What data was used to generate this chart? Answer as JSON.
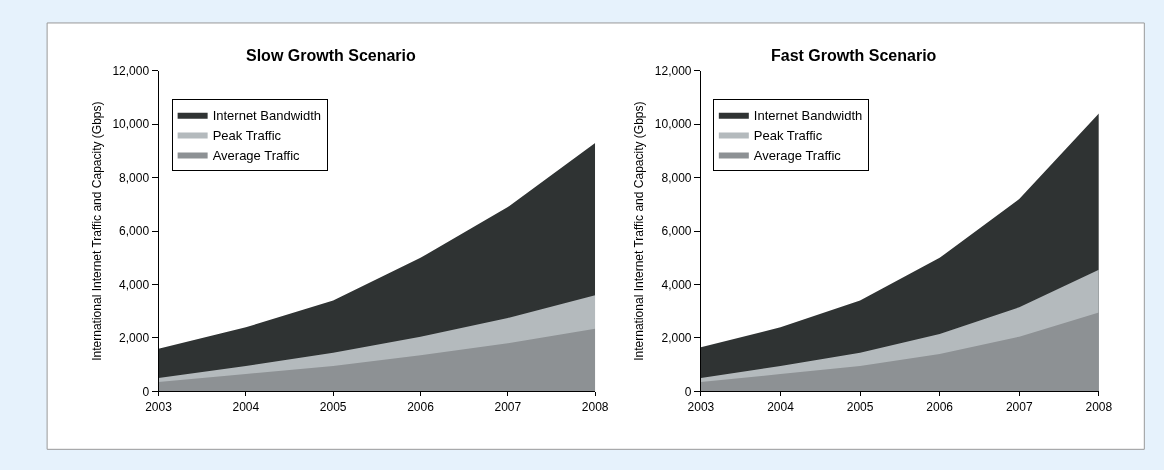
{
  "chart_data": [
    {
      "type": "area",
      "title": "Slow Growth Scenario",
      "ylabel": "International Internet Traffic and Capacity (Gbps)",
      "x": [
        2003,
        2004,
        2005,
        2006,
        2007,
        2008
      ],
      "xlim": [
        2003,
        2008
      ],
      "xticks": [
        2003,
        2004,
        2005,
        2006,
        2007,
        2008
      ],
      "ylim": [
        0,
        12000
      ],
      "yticks": [
        {
          "value": 0,
          "label": "0"
        },
        {
          "value": 2000,
          "label": "2,000"
        },
        {
          "value": 4000,
          "label": "4,000"
        },
        {
          "value": 6000,
          "label": "6,000"
        },
        {
          "value": 8000,
          "label": "8,000"
        },
        {
          "value": 10000,
          "label": "10,000"
        },
        {
          "value": 12000,
          "label": "12,000"
        }
      ],
      "legend": "top left",
      "series": [
        {
          "name": "Internet Bandwidth",
          "color": "#2f3333",
          "values": [
            1600,
            2400,
            3400,
            5000,
            6900,
            9300
          ]
        },
        {
          "name": "Peak Traffic",
          "color": "#b4babd",
          "values": [
            500,
            950,
            1450,
            2050,
            2750,
            3600
          ]
        },
        {
          "name": "Average Traffic",
          "color": "#8d9194",
          "values": [
            350,
            650,
            950,
            1350,
            1800,
            2350
          ]
        }
      ]
    },
    {
      "type": "area",
      "title": "Fast Growth Scenario",
      "ylabel": "International Internet Traffic and Capacity (Gbps)",
      "x": [
        2003,
        2004,
        2005,
        2006,
        2007,
        2008
      ],
      "xlim": [
        2003,
        2008
      ],
      "xticks": [
        2003,
        2004,
        2005,
        2006,
        2007,
        2008
      ],
      "ylim": [
        0,
        12000
      ],
      "yticks": [
        {
          "value": 0,
          "label": "0"
        },
        {
          "value": 2000,
          "label": "2,000"
        },
        {
          "value": 4000,
          "label": "4,000"
        },
        {
          "value": 6000,
          "label": "6,000"
        },
        {
          "value": 8000,
          "label": "8,000"
        },
        {
          "value": 10000,
          "label": "10,000"
        },
        {
          "value": 12000,
          "label": "12,000"
        }
      ],
      "legend": "top left",
      "series": [
        {
          "name": "Internet Bandwidth",
          "color": "#2f3333",
          "values": [
            1650,
            2400,
            3400,
            5000,
            7200,
            10400
          ]
        },
        {
          "name": "Peak Traffic",
          "color": "#b4babd",
          "values": [
            500,
            950,
            1450,
            2150,
            3150,
            4550
          ]
        },
        {
          "name": "Average Traffic",
          "color": "#8d9194",
          "values": [
            350,
            650,
            950,
            1400,
            2050,
            2950
          ]
        }
      ]
    }
  ]
}
